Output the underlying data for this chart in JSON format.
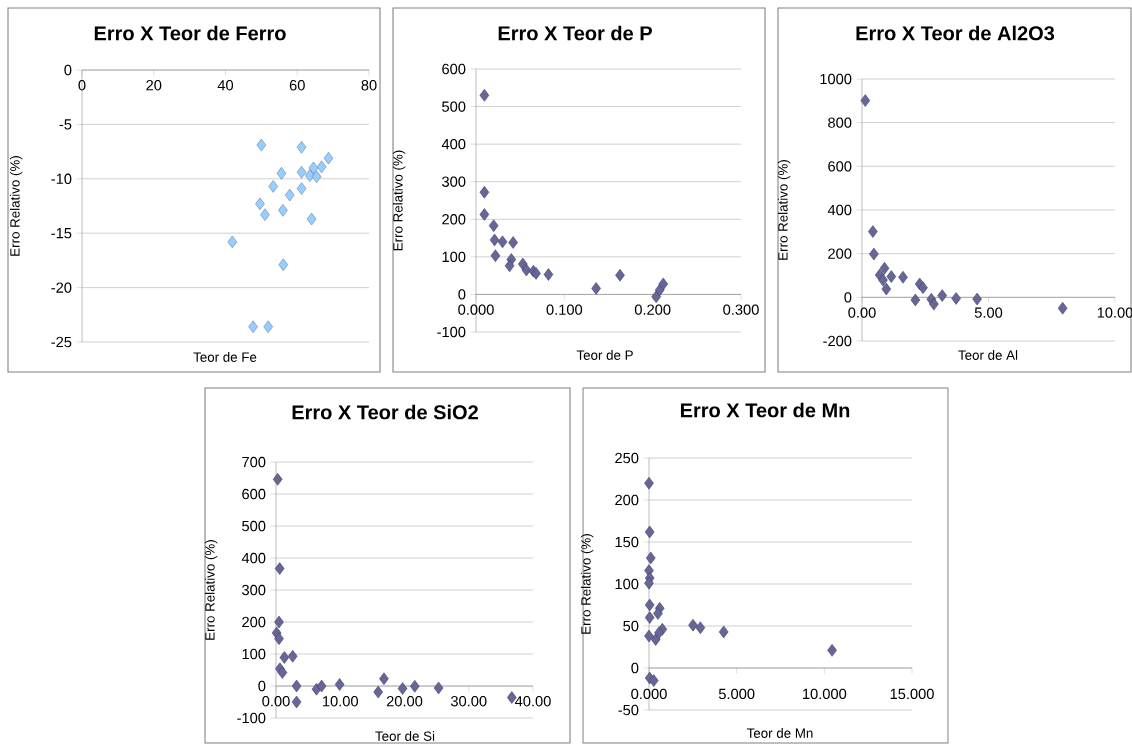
{
  "chart_data": [
    {
      "type": "scatter",
      "title": "Erro X Teor de Ferro",
      "xlabel": "Teor de Fe",
      "ylabel": "Erro Relativo (%)",
      "color": "#99ccff",
      "marker": "diamond",
      "grid": "y",
      "x": [
        50.0,
        61.2,
        68.7,
        66.8,
        64.5,
        61.2,
        55.6,
        63.5,
        65.4,
        53.3,
        61.2,
        57.9,
        49.6,
        51.0,
        56.0,
        64.0,
        41.9,
        56.1,
        47.7,
        51.9
      ],
      "values": [
        -6.9,
        -7.1,
        -8.1,
        -8.9,
        -9.0,
        -9.4,
        -9.5,
        -9.7,
        -9.8,
        -10.7,
        -10.9,
        -11.5,
        -12.3,
        -13.3,
        -12.9,
        -13.7,
        -15.8,
        -17.9,
        -23.6,
        -23.6
      ],
      "xlim": [
        0,
        80
      ],
      "xticks": [
        0,
        20,
        40,
        60,
        80
      ],
      "ylim": [
        -25,
        0
      ],
      "yticks": [
        -25,
        -20,
        -15,
        -10,
        -5,
        0
      ]
    },
    {
      "type": "scatter",
      "title": "Erro X Teor de P",
      "xlabel": "Teor de P",
      "ylabel": "Erro Relativo (%)",
      "color": "#666699",
      "marker": "diamond",
      "grid": "y",
      "x": [
        0.0095,
        0.0095,
        0.0095,
        0.02,
        0.021,
        0.03,
        0.042,
        0.022,
        0.04,
        0.038,
        0.053,
        0.057,
        0.065,
        0.068,
        0.082,
        0.136,
        0.163,
        0.204,
        0.208,
        0.212
      ],
      "values": [
        530,
        272,
        213,
        183,
        145,
        140,
        138,
        103,
        93,
        76,
        81,
        65,
        62,
        56,
        53,
        16,
        51,
        -6,
        12,
        28
      ],
      "xlim": [
        0,
        0.3
      ],
      "xticks": [
        {
          "value": 0,
          "label": "0.000"
        },
        {
          "value": 0.1,
          "label": "0.100"
        },
        {
          "value": 0.2,
          "label": "0.200"
        },
        {
          "value": 0.3,
          "label": "0.300"
        }
      ],
      "ylim": [
        -100,
        600
      ],
      "yticks": [
        -100,
        0,
        100,
        200,
        300,
        400,
        500,
        600
      ]
    },
    {
      "type": "scatter",
      "title": "Erro X Teor de Al2O3",
      "xlabel": "Teor de Al",
      "ylabel": "Erro Relativo (%)",
      "color": "#666699",
      "marker": "diamond",
      "grid": "y",
      "x": [
        0.13,
        0.43,
        0.47,
        0.89,
        0.7,
        0.83,
        1.16,
        1.62,
        0.96,
        2.28,
        2.41,
        2.11,
        2.74,
        2.84,
        3.17,
        3.72,
        4.55,
        7.93
      ],
      "values": [
        901,
        301,
        198,
        133,
        102,
        79,
        95,
        92,
        38,
        61,
        44,
        -12,
        -9,
        -31,
        8,
        -5,
        -8,
        -50
      ],
      "xlim": [
        0,
        10
      ],
      "xticks": [
        {
          "value": 0,
          "label": "0.00"
        },
        {
          "value": 5,
          "label": "5.00"
        },
        {
          "value": 10,
          "label": "10.00"
        }
      ],
      "ylim": [
        -200,
        1000
      ],
      "yticks": [
        -200,
        0,
        200,
        400,
        600,
        800,
        1000
      ]
    },
    {
      "type": "scatter",
      "title": "Erro X Teor de SiO2",
      "xlabel": "Teor de Si",
      "ylabel": "Erro Relativo (%)",
      "color": "#666699",
      "marker": "diamond",
      "grid": "y",
      "x": [
        0.26,
        0.57,
        0.47,
        0.1,
        0.47,
        1.3,
        2.6,
        0.6,
        1.0,
        3.2,
        3.2,
        6.3,
        7.1,
        9.9,
        15.9,
        16.8,
        19.7,
        21.6,
        25.3,
        36.7
      ],
      "values": [
        646,
        367,
        200,
        166,
        148,
        89,
        93,
        54,
        42,
        0,
        -50,
        -10,
        0,
        5,
        -19,
        23,
        -8,
        -1,
        -6,
        -36
      ],
      "xlim": [
        0,
        40
      ],
      "xticks": [
        {
          "value": 0,
          "label": "0.00"
        },
        {
          "value": 10,
          "label": "10.00"
        },
        {
          "value": 20,
          "label": "20.00"
        },
        {
          "value": 30,
          "label": "30.00"
        },
        {
          "value": 40,
          "label": "40.00"
        }
      ],
      "ylim": [
        -100,
        700
      ],
      "yticks": [
        -100,
        0,
        100,
        200,
        300,
        400,
        500,
        600,
        700
      ]
    },
    {
      "type": "scatter",
      "title": "Erro X Teor de Mn",
      "xlabel": "Teor de Mn",
      "ylabel": "Erro Relativo (%)",
      "color": "#666699",
      "marker": "diamond",
      "grid": "y",
      "x": [
        0,
        0.04,
        0.1,
        0,
        0.04,
        0,
        0.04,
        0.04,
        0,
        0.38,
        0.61,
        0.51,
        0.76,
        0.57,
        2.51,
        2.93,
        4.26,
        10.44,
        0.04,
        0.27
      ],
      "values": [
        220,
        162,
        131,
        116,
        107,
        101,
        75,
        60,
        38,
        34,
        71,
        65,
        46,
        42,
        51,
        48,
        43,
        21,
        -12,
        -15
      ],
      "xlim": [
        0,
        15
      ],
      "xticks": [
        {
          "value": 0,
          "label": "0.000"
        },
        {
          "value": 5,
          "label": "5.000"
        },
        {
          "value": 10,
          "label": "10.000"
        },
        {
          "value": 15,
          "label": "15.000"
        }
      ],
      "ylim": [
        -50,
        250
      ],
      "yticks": [
        -50,
        0,
        50,
        100,
        150,
        200,
        250
      ]
    }
  ]
}
